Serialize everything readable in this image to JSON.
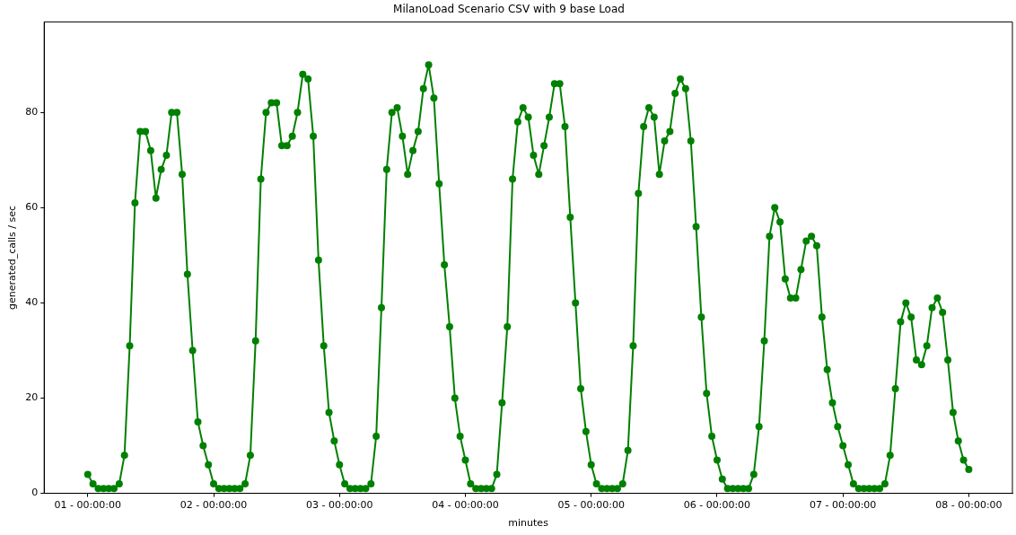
{
  "chart_data": {
    "type": "line",
    "title": "MilanoLoad Scenario CSV with 9 base Load",
    "xlabel": "minutes",
    "ylabel": "generated_calls / sec",
    "categories": [
      "01 - 00:00:00",
      null,
      null,
      null,
      null,
      null,
      null,
      null,
      null,
      null,
      null,
      null,
      null,
      null,
      null,
      null,
      null,
      null,
      null,
      null,
      null,
      null,
      null,
      null,
      "02 - 00:00:00",
      null,
      null,
      null,
      null,
      null,
      null,
      null,
      null,
      null,
      null,
      null,
      null,
      null,
      null,
      null,
      null,
      null,
      null,
      null,
      null,
      null,
      null,
      null,
      "03 - 00:00:00",
      null,
      null,
      null,
      null,
      null,
      null,
      null,
      null,
      null,
      null,
      null,
      null,
      null,
      null,
      null,
      null,
      null,
      null,
      null,
      null,
      null,
      null,
      null,
      "04 - 00:00:00",
      null,
      null,
      null,
      null,
      null,
      null,
      null,
      null,
      null,
      null,
      null,
      null,
      null,
      null,
      null,
      null,
      null,
      null,
      null,
      null,
      null,
      null,
      null,
      "05 - 00:00:00",
      null,
      null,
      null,
      null,
      null,
      null,
      null,
      null,
      null,
      null,
      null,
      null,
      null,
      null,
      null,
      null,
      null,
      null,
      null,
      null,
      null,
      null,
      null,
      "06 - 00:00:00",
      null,
      null,
      null,
      null,
      null,
      null,
      null,
      null,
      null,
      null,
      null,
      null,
      null,
      null,
      null,
      null,
      null,
      null,
      null,
      null,
      null,
      null,
      null,
      "07 - 00:00:00",
      null,
      null,
      null,
      null,
      null,
      null,
      null,
      null,
      null,
      null,
      null,
      null,
      null,
      null,
      null,
      null,
      null,
      null,
      null,
      null,
      null,
      null,
      null,
      "08 - 00:00:00"
    ],
    "series": [
      {
        "color": "#008000",
        "values": [
          4,
          2,
          1,
          1,
          1,
          1,
          2,
          8,
          31,
          61,
          76,
          76,
          72,
          62,
          68,
          71,
          80,
          80,
          67,
          46,
          30,
          15,
          10,
          6,
          2,
          1,
          1,
          1,
          1,
          1,
          2,
          8,
          32,
          66,
          80,
          82,
          82,
          73,
          73,
          75,
          80,
          88,
          87,
          75,
          49,
          31,
          17,
          11,
          6,
          2,
          1,
          1,
          1,
          1,
          2,
          12,
          39,
          68,
          80,
          81,
          75,
          67,
          72,
          76,
          85,
          90,
          83,
          65,
          48,
          35,
          20,
          12,
          7,
          2,
          1,
          1,
          1,
          1,
          4,
          19,
          35,
          66,
          78,
          81,
          79,
          71,
          67,
          73,
          79,
          86,
          86,
          77,
          58,
          40,
          22,
          13,
          6,
          2,
          1,
          1,
          1,
          1,
          2,
          9,
          31,
          63,
          77,
          81,
          79,
          67,
          74,
          76,
          84,
          87,
          85,
          74,
          56,
          37,
          21,
          12,
          7,
          3,
          1,
          1,
          1,
          1,
          1,
          4,
          14,
          32,
          54,
          60,
          57,
          45,
          41,
          41,
          47,
          53,
          54,
          52,
          37,
          26,
          19,
          14,
          10,
          6,
          2,
          1,
          1,
          1,
          1,
          1,
          2,
          8,
          22,
          36,
          40,
          37,
          28,
          27,
          31,
          39,
          41,
          38,
          28,
          17,
          11,
          7,
          5
        ]
      }
    ],
    "ylim": [
      0,
      99
    ],
    "yticks": [
      0,
      20,
      40,
      60,
      80
    ],
    "marker": "circle",
    "line_style": "solid",
    "grid": false,
    "legend": false
  }
}
